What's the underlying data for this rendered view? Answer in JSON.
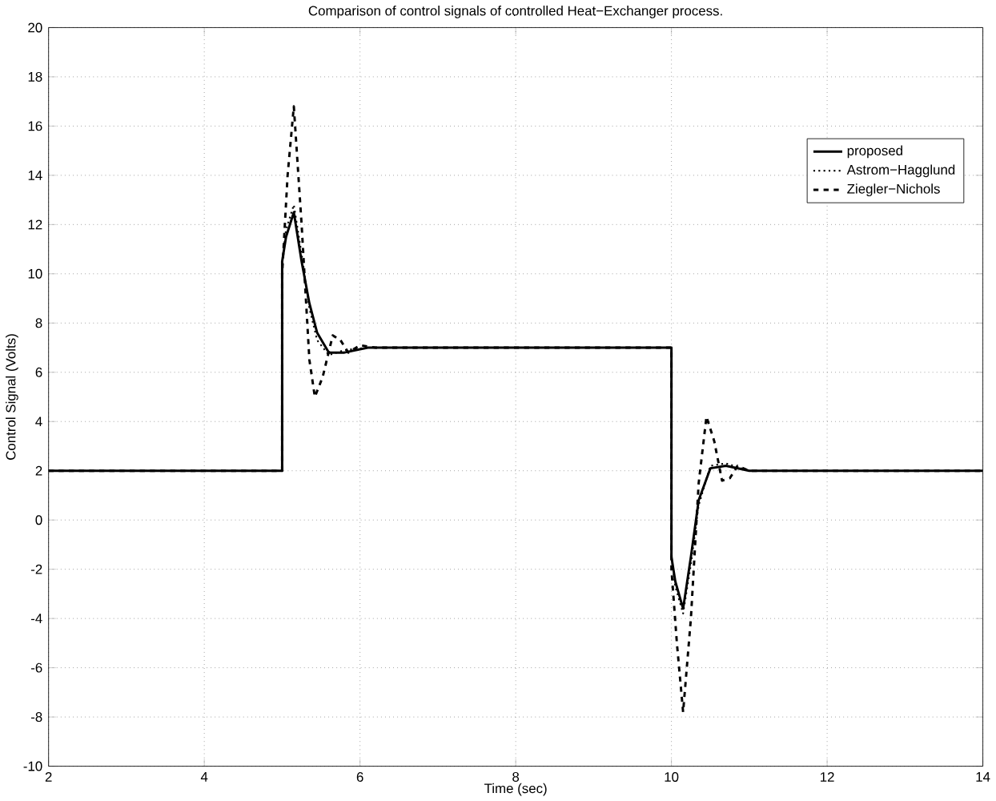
{
  "chart_data": {
    "type": "line",
    "title": "Comparison of control signals of controlled Heat−Exchanger process.",
    "xlabel": "Time (sec)",
    "ylabel": "Control Signal (Volts)",
    "xlim": [
      2,
      14
    ],
    "ylim": [
      -10,
      20
    ],
    "xticks": [
      2,
      4,
      6,
      8,
      10,
      12,
      14
    ],
    "yticks": [
      -10,
      -8,
      -6,
      -4,
      -2,
      0,
      2,
      4,
      6,
      8,
      10,
      12,
      14,
      16,
      18,
      20
    ],
    "grid": true,
    "legend": "top right",
    "marker": "none",
    "series": [
      {
        "name": "proposed",
        "color": "#000000",
        "line_style": "solid",
        "x": [
          2,
          5,
          5,
          5.05,
          5.15,
          5.25,
          5.35,
          5.45,
          5.6,
          5.8,
          6.1,
          10,
          10,
          10.05,
          10.15,
          10.25,
          10.35,
          10.5,
          10.7,
          11,
          14
        ],
        "values": [
          2,
          2,
          10.5,
          11.5,
          12.5,
          10.5,
          8.8,
          7.6,
          6.8,
          6.8,
          7,
          7,
          -1.5,
          -2.5,
          -3.6,
          -1.5,
          0.8,
          2.1,
          2.2,
          2,
          2
        ]
      },
      {
        "name": "Astrom−Hagglund",
        "color": "#000000",
        "line_style": "dotted",
        "x": [
          2,
          5,
          5,
          5.05,
          5.15,
          5.25,
          5.35,
          5.45,
          5.6,
          5.8,
          6.1,
          10,
          10,
          10.05,
          10.15,
          10.25,
          10.35,
          10.5,
          10.7,
          11,
          14
        ],
        "values": [
          2,
          2,
          10.5,
          11.8,
          12.8,
          10.8,
          8.6,
          7.3,
          6.7,
          6.9,
          7,
          7,
          -1.5,
          -2.7,
          -3.8,
          -1.8,
          0.6,
          2.2,
          2.3,
          2,
          2
        ]
      },
      {
        "name": "Ziegler−Nichols",
        "color": "#000000",
        "line_style": "dashed",
        "x": [
          2,
          5,
          5,
          5.07,
          5.15,
          5.25,
          5.35,
          5.42,
          5.52,
          5.65,
          5.75,
          5.85,
          6,
          6.2,
          10,
          10,
          10.07,
          10.15,
          10.25,
          10.35,
          10.45,
          10.55,
          10.65,
          10.75,
          10.85,
          11,
          14
        ],
        "values": [
          2,
          2,
          10,
          14,
          16.8,
          12,
          6.5,
          5,
          5.8,
          7.5,
          7.3,
          6.8,
          7.1,
          7,
          7,
          -2,
          -5,
          -7.8,
          -4,
          1.5,
          4.2,
          3.2,
          1.6,
          1.7,
          2.2,
          2,
          2
        ]
      }
    ]
  }
}
